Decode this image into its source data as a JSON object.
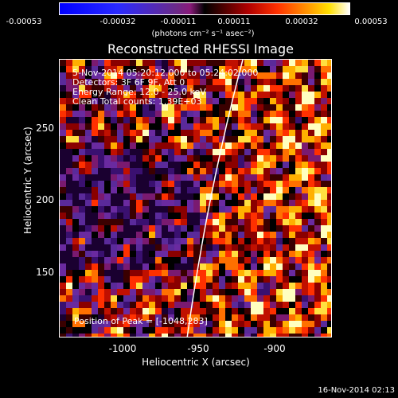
{
  "colorbar": {
    "ticks": [
      "-0.00053",
      "-0.00032",
      "-0.00011",
      "0.00011",
      "0.00032",
      "0.00053"
    ],
    "units": "(photons cm⁻² s⁻¹ asec⁻²)"
  },
  "title": "Reconstructed RHESSI Image",
  "info": {
    "time": "5-Nov-2014 05:20:12.000 to 05:24:02.000",
    "detectors": "Detectors: 3F 6F 9F, Att 0",
    "energy": "Energy Range: 12.0 - 25.0 keV",
    "clean": "Clean    Total counts: 1.39E+03",
    "peak": "Position of Peak = [-1048,283]"
  },
  "axes": {
    "xlabel": "Heliocentric X (arcsec)",
    "ylabel": "Heliocentric Y (arcsec)",
    "xticks": [
      "-1000",
      "-950",
      "-900"
    ],
    "yticks": [
      "250",
      "200",
      "150"
    ]
  },
  "footer": {
    "date": "16-Nov-2014 02:13"
  }
}
